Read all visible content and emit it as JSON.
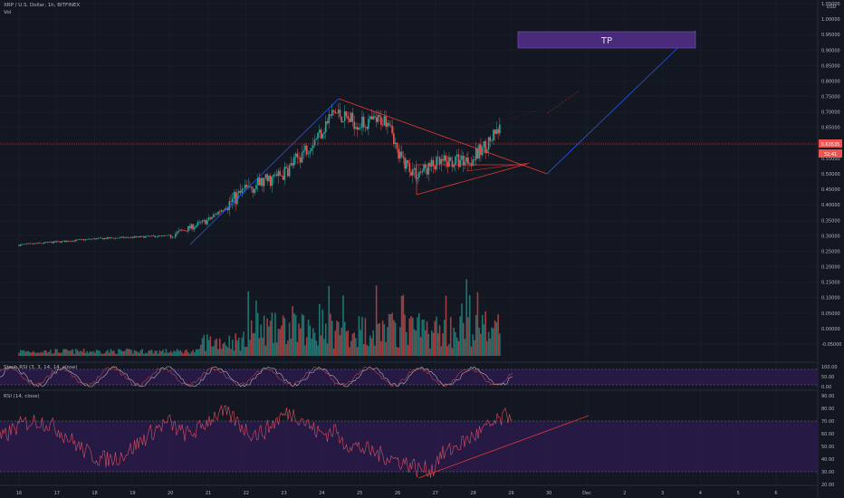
{
  "header": {
    "symbol_line": "XRP / U.S. Dollar, 1h, BITFINEX",
    "vol_label": "Vol",
    "stoch_label": "Stoch RSI (3, 3, 14, 14, close)",
    "rsi_label": "RSI (14, close)"
  },
  "price_axis": {
    "currency": "USD",
    "ticks": [
      "1.05000",
      "1.00000",
      "0.95000",
      "0.90000",
      "0.85000",
      "0.80000",
      "0.75000",
      "0.70000",
      "0.65000",
      "0.60000",
      "0.55000",
      "0.50000",
      "0.45000",
      "0.40000",
      "0.35000",
      "0.30000",
      "0.25000",
      "0.20000",
      "0.15000",
      "0.10000",
      "0.05000",
      "0.00000",
      "-0.05000"
    ],
    "current_price": "0.63535",
    "countdown": "32:41"
  },
  "stoch_axis": {
    "ticks": [
      "100.00",
      "50.00",
      "0.00"
    ]
  },
  "rsi_axis": {
    "ticks": [
      "90.00",
      "80.00",
      "70.00",
      "60.00",
      "50.00",
      "40.00",
      "30.00",
      "20.00"
    ]
  },
  "time_axis": {
    "ticks": [
      "16",
      "17",
      "18",
      "19",
      "20",
      "21",
      "22",
      "23",
      "24",
      "25",
      "26",
      "27",
      "28",
      "29",
      "30",
      "Dec",
      "2",
      "3",
      "4",
      "5",
      "6"
    ]
  },
  "annotations": {
    "tp_label": "TP"
  },
  "colors": {
    "background": "#131722",
    "bull": "#26a69a",
    "bear": "#ef5350",
    "drawing": "#e53935",
    "projection": "#2962ff",
    "tp_box": "#4a2a7a",
    "indicator_band": "#2a1a4a"
  },
  "chart_data": [
    {
      "type": "candlestick",
      "title": "XRP / U.S. Dollar, 1h, BITFINEX",
      "ylabel": "USD",
      "ylim": [
        -0.05,
        1.05
      ],
      "x_ticks": [
        "16",
        "17",
        "18",
        "19",
        "20",
        "21",
        "22",
        "23",
        "24",
        "25",
        "26",
        "27",
        "28",
        "29",
        "30",
        "Dec",
        "2",
        "3",
        "4",
        "5",
        "6"
      ],
      "price_path": [
        {
          "x": "16",
          "close": 0.27
        },
        {
          "x": "18",
          "close": 0.29
        },
        {
          "x": "20",
          "close": 0.3
        },
        {
          "x": "21",
          "close": 0.35
        },
        {
          "x": "22",
          "close": 0.45
        },
        {
          "x": "23",
          "close": 0.5
        },
        {
          "x": "24",
          "close": 0.64
        },
        {
          "x": "24.3",
          "close": 0.7
        },
        {
          "x": "25",
          "close": 0.66
        },
        {
          "x": "25.8",
          "close": 0.68
        },
        {
          "x": "26",
          "close": 0.56
        },
        {
          "x": "26.5",
          "close": 0.5
        },
        {
          "x": "27",
          "close": 0.53
        },
        {
          "x": "28",
          "close": 0.55
        },
        {
          "x": "28.7",
          "close": 0.64
        }
      ],
      "last_price": 0.63535,
      "take_profit_label": "TP"
    },
    {
      "type": "bar",
      "title": "Vol"
    },
    {
      "type": "line",
      "title": "Stoch RSI (3, 3, 14, 14, close)",
      "ylim": [
        0,
        100
      ],
      "y_ticks": [
        "100.00",
        "50.00",
        "0.00"
      ]
    },
    {
      "type": "line",
      "title": "RSI (14, close)",
      "ylim": [
        20,
        90
      ],
      "y_ticks": [
        "90.00",
        "80.00",
        "70.00",
        "60.00",
        "50.00",
        "40.00",
        "30.00",
        "20.00"
      ],
      "levels": [
        70,
        30
      ]
    }
  ]
}
